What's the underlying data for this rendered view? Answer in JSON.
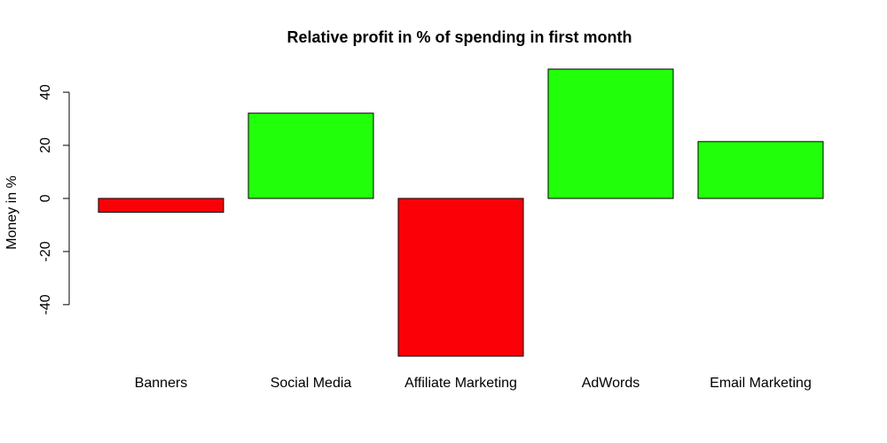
{
  "chart_data": {
    "type": "bar",
    "title": "Relative profit in % of spending in first month",
    "xlabel": "",
    "ylabel": "Money in %",
    "categories": [
      "Banners",
      "Social Media",
      "Affiliate Marketing",
      "AdWords",
      "Email Marketing"
    ],
    "values": [
      -5.2,
      32.1,
      -59.4,
      48.7,
      21.4
    ],
    "ylim": [
      -59.4,
      48.7
    ],
    "y_ticks": [
      -40,
      -20,
      0,
      20,
      40
    ],
    "grid": false,
    "legend": "none",
    "colors": {
      "positive": "#22ff0a",
      "negative": "#fb0007"
    }
  }
}
